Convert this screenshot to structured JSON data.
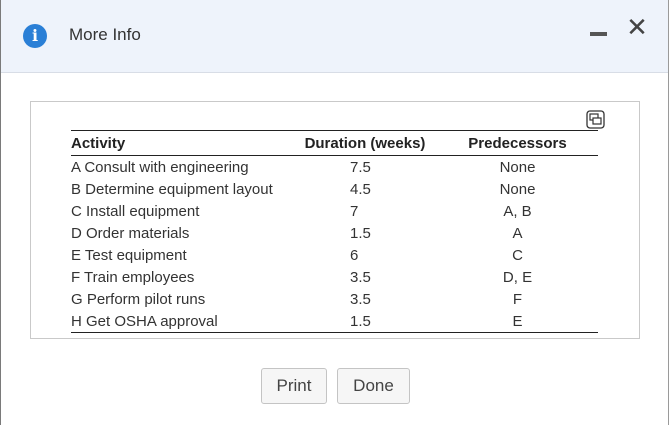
{
  "dialog": {
    "title": "More Info",
    "minimize_icon": "minimize-icon",
    "close_symbol": "✕"
  },
  "table": {
    "headers": [
      "Activity",
      "Duration (weeks)",
      "Predecessors"
    ],
    "rows": [
      {
        "activity": "A Consult with engineering",
        "duration": "7.5",
        "predecessors": "None"
      },
      {
        "activity": "B Determine equipment layout",
        "duration": "4.5",
        "predecessors": "None"
      },
      {
        "activity": "C Install equipment",
        "duration": "7",
        "predecessors": "A, B"
      },
      {
        "activity": "D Order materials",
        "duration": "1.5",
        "predecessors": "A"
      },
      {
        "activity": "E Test equipment",
        "duration": "6",
        "predecessors": "C"
      },
      {
        "activity": "F Train employees",
        "duration": "3.5",
        "predecessors": "D, E"
      },
      {
        "activity": "G Perform pilot runs",
        "duration": "3.5",
        "predecessors": "F"
      },
      {
        "activity": "H Get OSHA approval",
        "duration": "1.5",
        "predecessors": "E"
      }
    ]
  },
  "buttons": {
    "print": "Print",
    "done": "Done"
  },
  "colors": {
    "titlebar_bg": "#eef3fb",
    "info_icon": "#2a7fd6"
  }
}
